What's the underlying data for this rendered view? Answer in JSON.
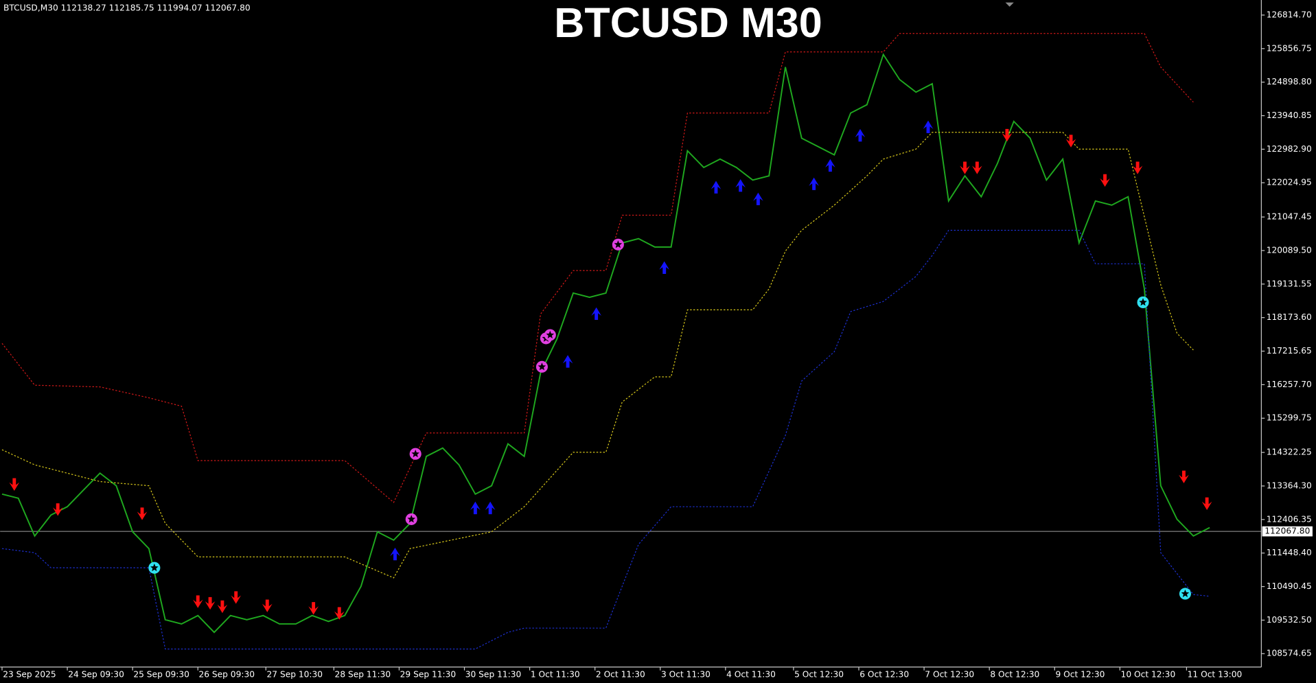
{
  "chart_data": {
    "type": "line",
    "title": "BTCUSD M30",
    "header": "BTCUSD,M30  112138.27 112185.75 111994.07 112067.80",
    "background": "#000000",
    "ylim": [
      108192,
      127245
    ],
    "xlim": [
      "2025-09-23T09:30",
      "2025-10-12T16:30"
    ],
    "yticks": [
      {
        "value": 126814.7,
        "label": "126814.70"
      },
      {
        "value": 125856.75,
        "label": "125856.75"
      },
      {
        "value": 124898.8,
        "label": "124898.80"
      },
      {
        "value": 123940.85,
        "label": "123940.85"
      },
      {
        "value": 122982.9,
        "label": "122982.90"
      },
      {
        "value": 122024.95,
        "label": "122024.95"
      },
      {
        "value": 121047.45,
        "label": "121047.45"
      },
      {
        "value": 120089.5,
        "label": "120089.50"
      },
      {
        "value": 119131.55,
        "label": "119131.55"
      },
      {
        "value": 118173.6,
        "label": "118173.60"
      },
      {
        "value": 117215.65,
        "label": "117215.65"
      },
      {
        "value": 116257.7,
        "label": "116257.70"
      },
      {
        "value": 115299.75,
        "label": "115299.75"
      },
      {
        "value": 114322.25,
        "label": "114322.25"
      },
      {
        "value": 113364.3,
        "label": "113364.30"
      },
      {
        "value": 112406.35,
        "label": "112406.35"
      },
      {
        "value": 111448.4,
        "label": "111448.40"
      },
      {
        "value": 110490.45,
        "label": "110490.45"
      },
      {
        "value": 109532.5,
        "label": "109532.50"
      },
      {
        "value": 108574.65,
        "label": "108574.65"
      }
    ],
    "xticks": [
      {
        "value": "2025-09-23T09:30",
        "label": "23 Sep 2025"
      },
      {
        "value": "2025-09-24T09:30",
        "label": "24 Sep 09:30"
      },
      {
        "value": "2025-09-25T09:30",
        "label": "25 Sep 09:30"
      },
      {
        "value": "2025-09-26T09:30",
        "label": "26 Sep 09:30"
      },
      {
        "value": "2025-09-27T10:30",
        "label": "27 Sep 10:30"
      },
      {
        "value": "2025-09-28T11:30",
        "label": "28 Sep 11:30"
      },
      {
        "value": "2025-09-29T11:30",
        "label": "29 Sep 11:30"
      },
      {
        "value": "2025-09-30T11:30",
        "label": "30 Sep 11:30"
      },
      {
        "value": "2025-10-01T11:30",
        "label": "1 Oct 11:30"
      },
      {
        "value": "2025-10-02T11:30",
        "label": "2 Oct 11:30"
      },
      {
        "value": "2025-10-03T11:30",
        "label": "3 Oct 11:30"
      },
      {
        "value": "2025-10-04T11:30",
        "label": "4 Oct 11:30"
      },
      {
        "value": "2025-10-05T12:30",
        "label": "5 Oct 12:30"
      },
      {
        "value": "2025-10-06T12:30",
        "label": "6 Oct 12:30"
      },
      {
        "value": "2025-10-07T12:30",
        "label": "7 Oct 12:30"
      },
      {
        "value": "2025-10-08T12:30",
        "label": "8 Oct 12:30"
      },
      {
        "value": "2025-10-09T12:30",
        "label": "9 Oct 12:30"
      },
      {
        "value": "2025-10-10T12:30",
        "label": "10 Oct 12:30"
      },
      {
        "value": "2025-10-11T13:00",
        "label": "11 Oct 13:00"
      }
    ],
    "last_price": {
      "value": 112067.8,
      "label": "112067.80",
      "color": "#a0a0a0"
    },
    "series": [
      {
        "color": "#1fa81f",
        "marker": "line",
        "dashed": false,
        "x": [
          "2025-09-23T09:30",
          "2025-09-23T15:30",
          "2025-09-23T21:30",
          "2025-09-24T03:30",
          "2025-09-24T09:30",
          "2025-09-24T15:30",
          "2025-09-24T21:30",
          "2025-09-25T03:30",
          "2025-09-25T09:30",
          "2025-09-25T15:30",
          "2025-09-25T21:30",
          "2025-09-26T03:30",
          "2025-09-26T09:30",
          "2025-09-26T15:30",
          "2025-09-26T21:30",
          "2025-09-27T03:30",
          "2025-09-27T09:30",
          "2025-09-27T15:30",
          "2025-09-27T21:30",
          "2025-09-28T03:30",
          "2025-09-28T09:30",
          "2025-09-28T15:30",
          "2025-09-28T21:30",
          "2025-09-29T03:30",
          "2025-09-29T09:30",
          "2025-09-29T15:30",
          "2025-09-29T21:30",
          "2025-09-30T03:30",
          "2025-09-30T09:30",
          "2025-09-30T15:30",
          "2025-09-30T21:30",
          "2025-10-01T03:30",
          "2025-10-01T09:30",
          "2025-10-01T15:30",
          "2025-10-01T21:30",
          "2025-10-02T03:30",
          "2025-10-02T09:30",
          "2025-10-02T15:30",
          "2025-10-02T21:30",
          "2025-10-03T03:30",
          "2025-10-03T09:30",
          "2025-10-03T15:30",
          "2025-10-03T21:30",
          "2025-10-04T03:30",
          "2025-10-04T09:30",
          "2025-10-04T15:30",
          "2025-10-04T21:30",
          "2025-10-05T03:30",
          "2025-10-05T09:30",
          "2025-10-05T15:30",
          "2025-10-05T21:30",
          "2025-10-06T03:30",
          "2025-10-06T09:30",
          "2025-10-06T15:30",
          "2025-10-06T21:30",
          "2025-10-07T03:30",
          "2025-10-07T09:30",
          "2025-10-07T15:30",
          "2025-10-07T21:30",
          "2025-10-08T03:30",
          "2025-10-08T09:30",
          "2025-10-08T15:30",
          "2025-10-08T21:30",
          "2025-10-09T03:30",
          "2025-10-09T09:30",
          "2025-10-09T15:30",
          "2025-10-09T21:30",
          "2025-10-10T03:30",
          "2025-10-10T09:30",
          "2025-10-10T15:30",
          "2025-10-10T21:30",
          "2025-10-11T03:30",
          "2025-10-11T09:30",
          "2025-10-11T15:30",
          "2025-10-11T21:30"
        ],
        "values": [
          113132,
          113013,
          111936,
          112534,
          112773,
          113252,
          113730,
          113371,
          112056,
          111577,
          109544,
          109425,
          109664,
          109185,
          109664,
          109544,
          109664,
          109425,
          109425,
          109664,
          109496,
          109664,
          110501,
          112056,
          111817,
          112295,
          114209,
          114448,
          113969,
          113132,
          113371,
          114567,
          114209,
          116601,
          117557,
          118873,
          118753,
          118873,
          120308,
          120428,
          120189,
          120189,
          122939,
          122461,
          122700,
          122461,
          122102,
          122222,
          125331,
          123298,
          123059,
          122820,
          124016,
          124255,
          125690,
          124973,
          124614,
          124853,
          121504,
          122222,
          121624,
          122581,
          123777,
          123298,
          122102,
          122700,
          120308,
          121504,
          121385,
          121624,
          118993,
          113371,
          112415,
          111936,
          112175
        ]
      },
      {
        "color": "#d01818",
        "marker": "line",
        "dashed": true,
        "x": [
          "2025-09-23T09:30",
          "2025-09-23T21:30",
          "2025-09-24T21:30",
          "2025-09-25T15:30",
          "2025-09-26T03:30",
          "2025-09-26T09:30",
          "2025-09-28T15:30",
          "2025-09-29T09:30",
          "2025-09-29T21:30",
          "2025-10-01T09:30",
          "2025-10-01T15:30",
          "2025-10-02T03:30",
          "2025-10-02T15:30",
          "2025-10-02T21:30",
          "2025-10-03T15:30",
          "2025-10-03T21:30",
          "2025-10-05T03:30",
          "2025-10-05T09:30",
          "2025-10-06T21:30",
          "2025-10-07T03:30",
          "2025-10-10T21:30",
          "2025-10-11T03:30",
          "2025-10-11T15:30"
        ],
        "values": [
          117438,
          116242,
          116194,
          115883,
          115644,
          114089,
          114089,
          112893,
          114878,
          114878,
          118275,
          119519,
          119519,
          121098,
          121098,
          124016,
          124016,
          125762,
          125762,
          126288,
          126288,
          125331,
          124327
        ]
      },
      {
        "color": "#d8c81a",
        "marker": "line",
        "dashed": true,
        "x": [
          "2025-09-23T09:30",
          "2025-09-23T21:30",
          "2025-09-24T21:30",
          "2025-09-25T15:30",
          "2025-09-25T21:30",
          "2025-09-26T09:30",
          "2025-09-28T15:30",
          "2025-09-29T09:30",
          "2025-09-29T15:30",
          "2025-09-30T21:30",
          "2025-10-01T09:30",
          "2025-10-02T03:30",
          "2025-10-02T15:30",
          "2025-10-02T21:30",
          "2025-10-03T09:30",
          "2025-10-03T15:30",
          "2025-10-03T21:30",
          "2025-10-04T21:30",
          "2025-10-05T03:30",
          "2025-10-05T09:30",
          "2025-10-05T15:30",
          "2025-10-06T03:30",
          "2025-10-06T15:30",
          "2025-10-06T21:30",
          "2025-10-07T09:30",
          "2025-10-07T15:30",
          "2025-10-09T15:30",
          "2025-10-09T21:30",
          "2025-10-10T15:30",
          "2025-10-11T03:30",
          "2025-10-11T09:30",
          "2025-10-11T15:30"
        ],
        "values": [
          114400,
          113969,
          113491,
          113371,
          112295,
          111338,
          111338,
          110740,
          111577,
          112056,
          112773,
          114328,
          114328,
          115764,
          116481,
          116481,
          118395,
          118395,
          118993,
          120069,
          120667,
          121385,
          122222,
          122700,
          122987,
          123466,
          123466,
          122987,
          122987,
          119112,
          117725,
          117247
        ]
      },
      {
        "color": "#1c2fd0",
        "marker": "line",
        "dashed": true,
        "x": [
          "2025-09-23T09:30",
          "2025-09-23T21:30",
          "2025-09-24T03:30",
          "2025-09-25T15:30",
          "2025-09-25T21:30",
          "2025-09-30T15:30",
          "2025-09-30T21:30",
          "2025-10-01T03:30",
          "2025-10-01T09:30",
          "2025-10-02T15:30",
          "2025-10-02T21:30",
          "2025-10-03T03:30",
          "2025-10-03T15:30",
          "2025-10-04T21:30",
          "2025-10-05T09:30",
          "2025-10-05T15:30",
          "2025-10-06T03:30",
          "2025-10-06T09:30",
          "2025-10-06T21:30",
          "2025-10-07T09:30",
          "2025-10-07T15:30",
          "2025-10-07T21:30",
          "2025-10-09T21:30",
          "2025-10-10T03:30",
          "2025-10-10T21:30",
          "2025-10-11T03:30",
          "2025-10-11T15:30",
          "2025-10-11T21:30"
        ],
        "values": [
          111577,
          111458,
          111027,
          111027,
          108707,
          108707,
          108946,
          109185,
          109305,
          109305,
          110501,
          111697,
          112773,
          112773,
          114807,
          116361,
          117198,
          118347,
          118634,
          119351,
          119949,
          120667,
          120667,
          119710,
          119710,
          111458,
          110262,
          110214
        ]
      },
      {
        "color": "#ff1010",
        "marker": "arrow-down",
        "dashed": false,
        "x": [
          "2025-09-23T14:00",
          "2025-09-24T06:00",
          "2025-09-25T13:00",
          "2025-09-26T09:30",
          "2025-09-26T14:00",
          "2025-09-26T18:30",
          "2025-09-26T23:30",
          "2025-09-27T11:00",
          "2025-09-28T04:00",
          "2025-09-28T13:30",
          "2025-10-08T03:30",
          "2025-10-08T08:00",
          "2025-10-08T19:00",
          "2025-10-09T18:30",
          "2025-10-10T07:00",
          "2025-10-10T19:00",
          "2025-10-11T12:00",
          "2025-10-11T20:30"
        ],
        "values": [
          113371,
          112654,
          112534,
          110022,
          109975,
          109879,
          110142,
          109903,
          109831,
          109688,
          122413,
          122413,
          123346,
          123179,
          122054,
          122413,
          113587,
          112821
        ]
      },
      {
        "color": "#1414ff",
        "marker": "arrow-up",
        "dashed": false,
        "x": [
          "2025-09-29T10:00",
          "2025-09-30T15:30",
          "2025-09-30T21:00",
          "2025-10-02T01:30",
          "2025-10-02T12:00",
          "2025-10-03T13:00",
          "2025-10-04T08:00",
          "2025-10-04T17:00",
          "2025-10-04T23:30",
          "2025-10-05T20:00",
          "2025-10-06T02:00",
          "2025-10-06T13:00",
          "2025-10-07T14:00"
        ],
        "values": [
          111458,
          112773,
          112773,
          116959,
          118323,
          119638,
          121935,
          121983,
          121600,
          122031,
          122557,
          123418,
          123657
        ]
      },
      {
        "color": "#e040e0",
        "marker": "star",
        "dashed": false,
        "x": [
          "2025-09-29T17:30",
          "2025-09-29T16:00",
          "2025-10-01T16:00",
          "2025-10-01T17:30",
          "2025-10-01T19:00",
          "2025-10-02T20:00"
        ],
        "values": [
          114281,
          112415,
          116768,
          117581,
          117677,
          120260
        ]
      },
      {
        "color": "#30e0f0",
        "marker": "star",
        "dashed": false,
        "x": [
          "2025-09-25T17:30",
          "2025-10-10T21:00",
          "2025-10-11T12:30"
        ],
        "values": [
          111027,
          118610,
          110286
        ]
      }
    ]
  }
}
